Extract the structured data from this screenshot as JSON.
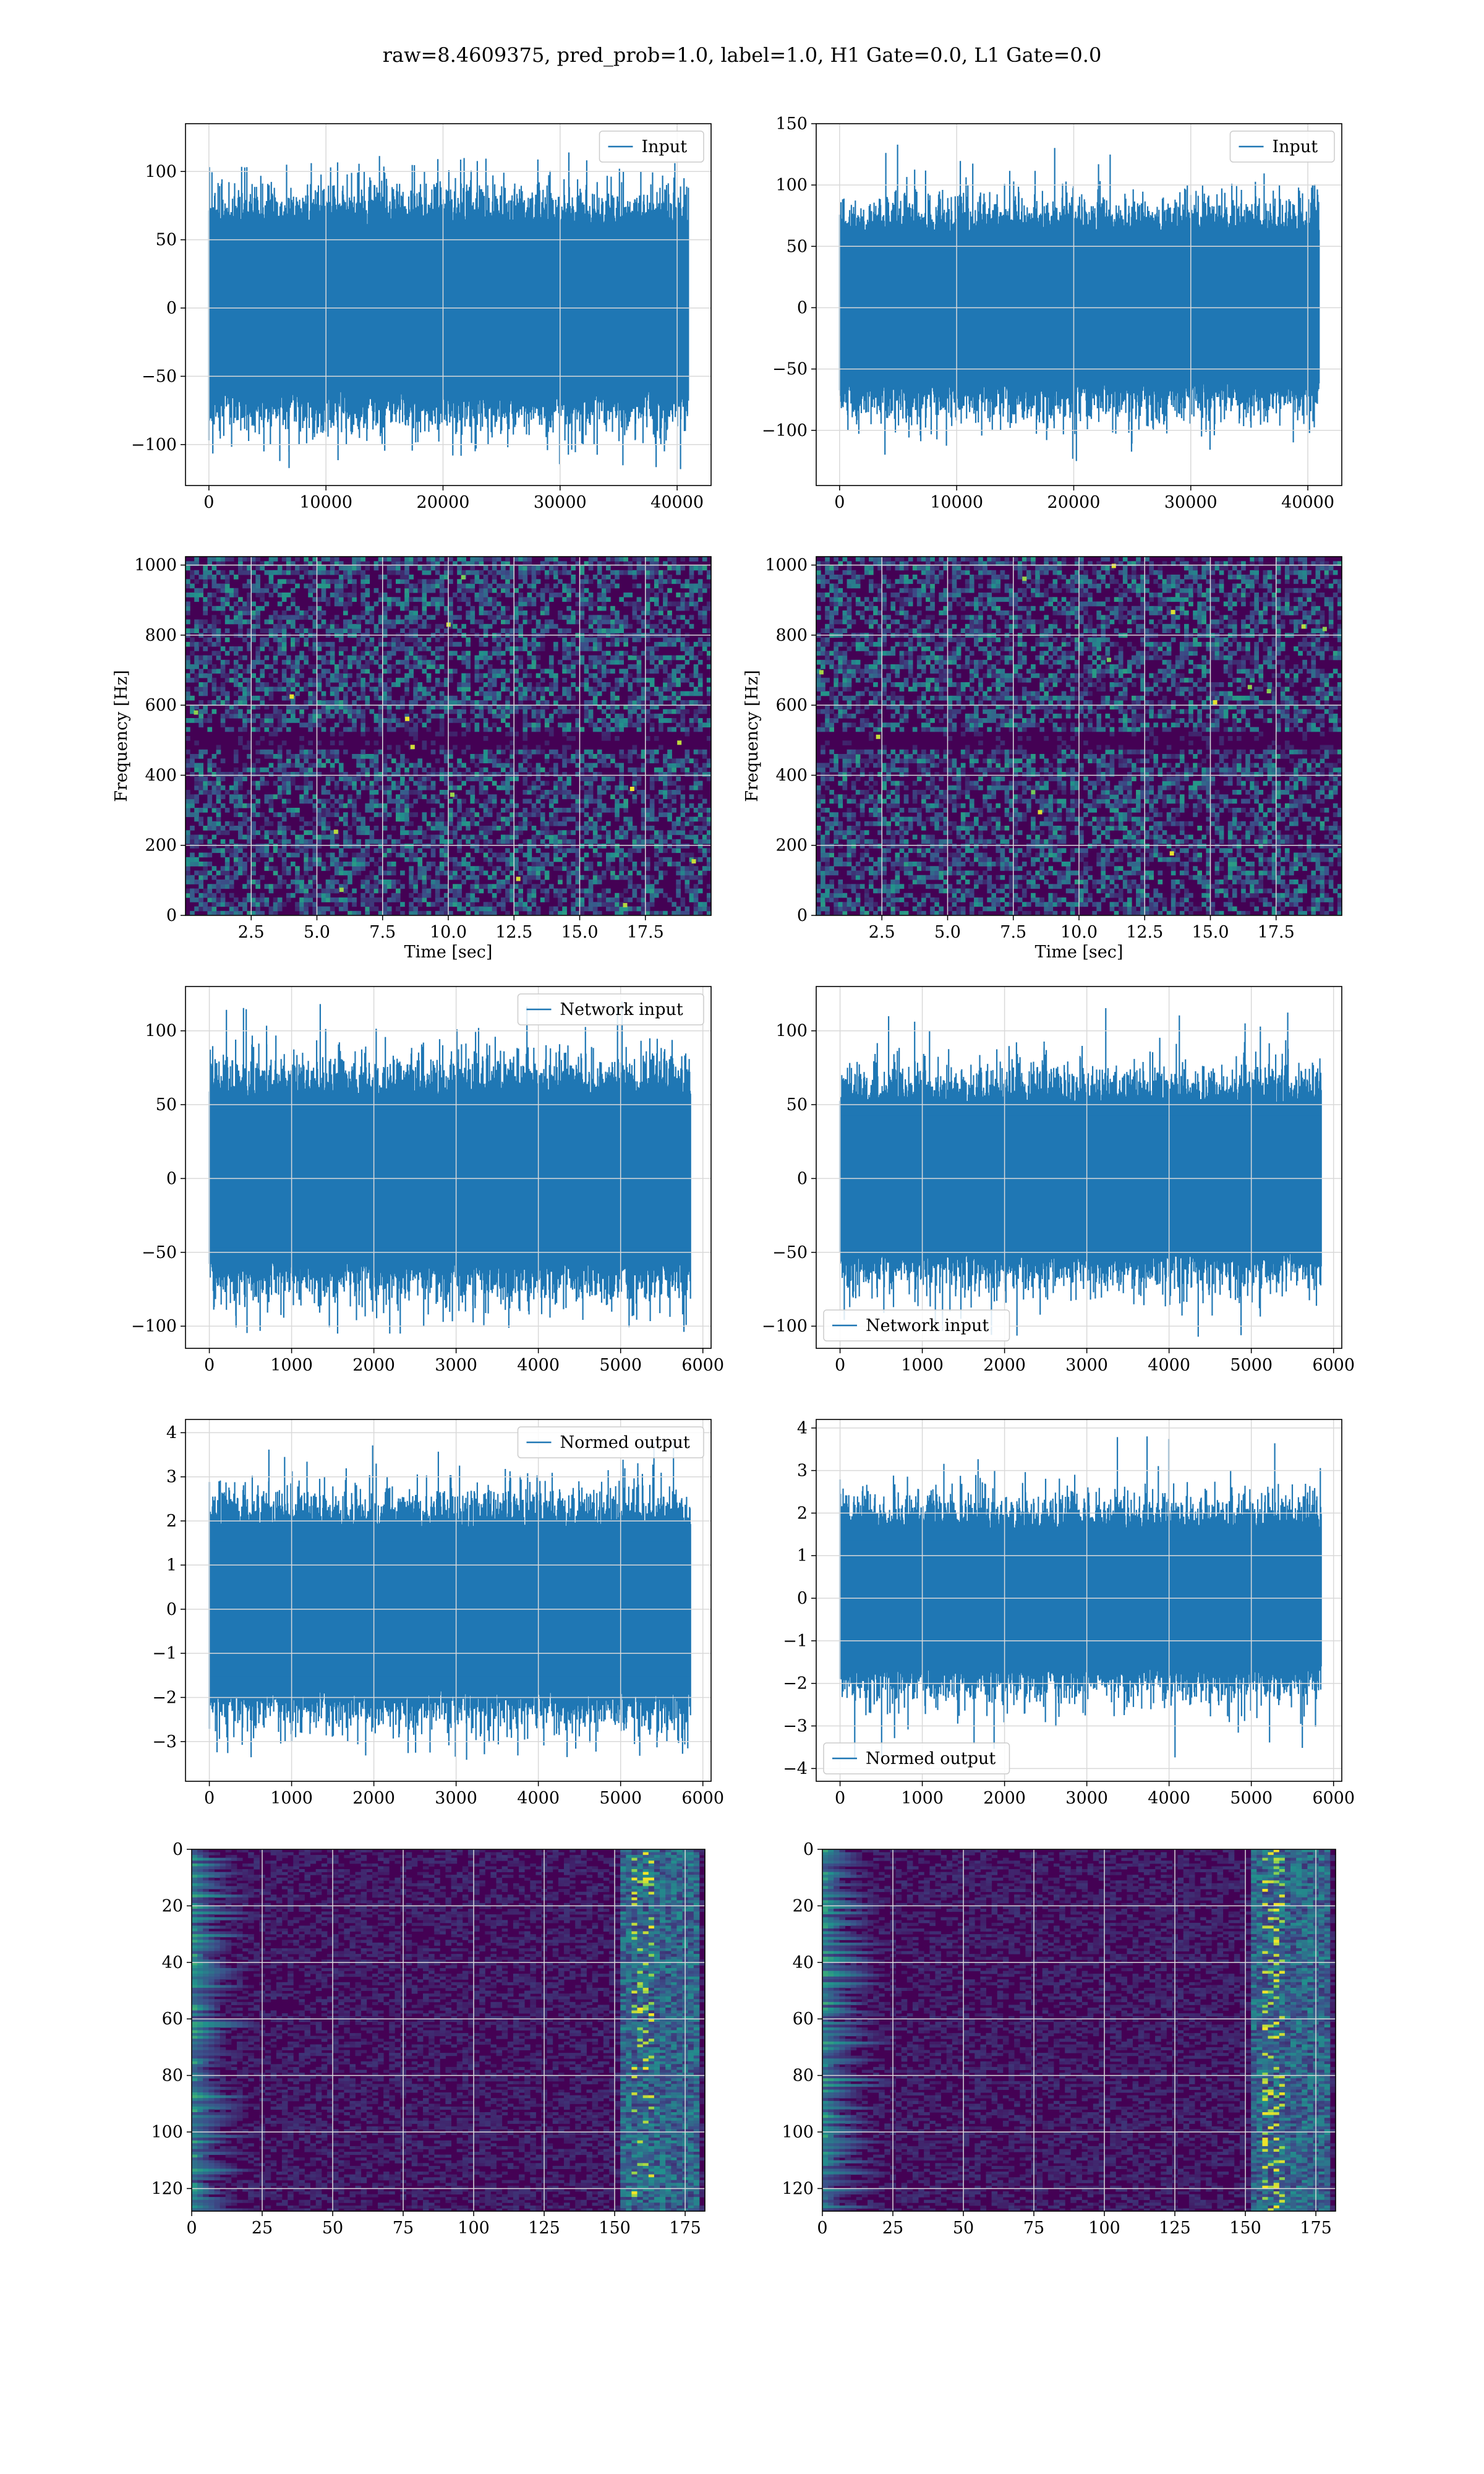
{
  "figure": {
    "title": "raw=8.4609375, pred_prob=1.0, label=1.0, H1 Gate=0.0, L1 Gate=0.0"
  },
  "colors": {
    "series": "#1f77b4",
    "grid": "#d9d9d9",
    "axes": "#000000",
    "viridis_low": "#440154",
    "viridis_mid": "#21918c",
    "viridis_high": "#fde725"
  },
  "chart_data": [
    {
      "id": "input-h1",
      "type": "line",
      "legend": [
        "Input"
      ],
      "legend_loc": "upper-right",
      "xlabel": "",
      "ylabel": "",
      "xlim": [
        -2000,
        42900
      ],
      "ylim": [
        -130,
        135
      ],
      "xticks": [
        0,
        10000,
        20000,
        30000,
        40000
      ],
      "yticks": [
        -100,
        -50,
        0,
        50,
        100
      ],
      "x_range": [
        0,
        40960
      ],
      "envelope": {
        "core": 60,
        "peak_max": 125,
        "peak_min": -118
      },
      "grid": true
    },
    {
      "id": "input-l1",
      "type": "line",
      "legend": [
        "Input"
      ],
      "legend_loc": "upper-right",
      "xlabel": "",
      "ylabel": "",
      "xlim": [
        -2000,
        42900
      ],
      "ylim": [
        -145,
        150
      ],
      "xticks": [
        0,
        10000,
        20000,
        30000,
        40000
      ],
      "yticks": [
        -100,
        -50,
        0,
        50,
        100,
        150
      ],
      "x_range": [
        0,
        40960
      ],
      "envelope": {
        "core": 60,
        "peak_max": 137,
        "peak_min": -130
      },
      "grid": true
    },
    {
      "id": "spectrogram-h1",
      "type": "heatmap",
      "xlabel": "Time [sec]",
      "ylabel": "Frequency [Hz]",
      "xlim": [
        0,
        20
      ],
      "ylim": [
        0,
        1024
      ],
      "xticks": [
        "2.5",
        "5.0",
        "7.5",
        "10.0",
        "12.5",
        "15.0",
        "17.5"
      ],
      "xtick_values": [
        2.5,
        5,
        7.5,
        10,
        12.5,
        15,
        17.5
      ],
      "yticks": [
        0,
        200,
        400,
        600,
        800,
        1000
      ],
      "colormap": "viridis",
      "dark_band_hz": 500,
      "grid": true
    },
    {
      "id": "spectrogram-l1",
      "type": "heatmap",
      "xlabel": "Time [sec]",
      "ylabel": "Frequency [Hz]",
      "xlim": [
        0,
        20
      ],
      "ylim": [
        0,
        1024
      ],
      "xticks": [
        "2.5",
        "5.0",
        "7.5",
        "10.0",
        "12.5",
        "15.0",
        "17.5"
      ],
      "xtick_values": [
        2.5,
        5,
        7.5,
        10,
        12.5,
        15,
        17.5
      ],
      "yticks": [
        0,
        200,
        400,
        600,
        800,
        1000
      ],
      "colormap": "viridis",
      "dark_band_hz": 500,
      "grid": true
    },
    {
      "id": "network-input-h1",
      "type": "line",
      "legend": [
        "Network input"
      ],
      "legend_loc": "upper-right",
      "xlabel": "",
      "ylabel": "",
      "xlim": [
        -290,
        6100
      ],
      "ylim": [
        -115,
        130
      ],
      "xticks": [
        0,
        1000,
        2000,
        3000,
        4000,
        5000,
        6000
      ],
      "yticks": [
        -100,
        -50,
        0,
        50,
        100
      ],
      "x_range": [
        0,
        5850
      ],
      "envelope": {
        "core": 55,
        "peak_max": 120,
        "peak_min": -105
      },
      "grid": true
    },
    {
      "id": "network-input-l1",
      "type": "line",
      "legend": [
        "Network input"
      ],
      "legend_loc": "lower-left",
      "xlabel": "",
      "ylabel": "",
      "xlim": [
        -290,
        6100
      ],
      "ylim": [
        -115,
        130
      ],
      "xticks": [
        0,
        1000,
        2000,
        3000,
        4000,
        5000,
        6000
      ],
      "yticks": [
        -100,
        -50,
        0,
        50,
        100
      ],
      "x_range": [
        0,
        5850
      ],
      "envelope": {
        "core": 50,
        "peak_max": 118,
        "peak_min": -108
      },
      "grid": true
    },
    {
      "id": "normed-output-h1",
      "type": "line",
      "legend": [
        "Normed output"
      ],
      "legend_loc": "upper-right",
      "xlabel": "",
      "ylabel": "",
      "xlim": [
        -290,
        6100
      ],
      "ylim": [
        -3.9,
        4.3
      ],
      "xticks": [
        0,
        1000,
        2000,
        3000,
        4000,
        5000,
        6000
      ],
      "yticks": [
        -3,
        -2,
        -1,
        0,
        1,
        2,
        3,
        4
      ],
      "x_range": [
        0,
        5850
      ],
      "envelope": {
        "core": 1.8,
        "peak_max": 3.9,
        "peak_min": -3.45
      },
      "grid": true
    },
    {
      "id": "normed-output-l1",
      "type": "line",
      "legend": [
        "Normed output"
      ],
      "legend_loc": "lower-left",
      "xlabel": "",
      "ylabel": "",
      "xlim": [
        -290,
        6100
      ],
      "ylim": [
        -4.3,
        4.2
      ],
      "xticks": [
        0,
        1000,
        2000,
        3000,
        4000,
        5000,
        6000
      ],
      "yticks": [
        -4,
        -3,
        -2,
        -1,
        0,
        1,
        2,
        3,
        4
      ],
      "x_range": [
        0,
        5850
      ],
      "envelope": {
        "core": 1.6,
        "peak_max": 3.9,
        "peak_min": -3.75
      },
      "grid": true
    },
    {
      "id": "feature-map-h1",
      "type": "heatmap",
      "xlabel": "",
      "ylabel": "",
      "xlim": [
        0,
        182
      ],
      "ylim": [
        128,
        0
      ],
      "xticks": [
        0,
        25,
        50,
        75,
        100,
        125,
        150,
        175
      ],
      "yticks": [
        0,
        20,
        40,
        60,
        80,
        100,
        120
      ],
      "colormap": "viridis",
      "grid": true
    },
    {
      "id": "feature-map-l1",
      "type": "heatmap",
      "xlabel": "",
      "ylabel": "",
      "xlim": [
        0,
        182
      ],
      "ylim": [
        128,
        0
      ],
      "xticks": [
        0,
        25,
        50,
        75,
        100,
        125,
        150,
        175
      ],
      "yticks": [
        0,
        20,
        40,
        60,
        80,
        100,
        120
      ],
      "colormap": "viridis",
      "grid": true
    }
  ]
}
